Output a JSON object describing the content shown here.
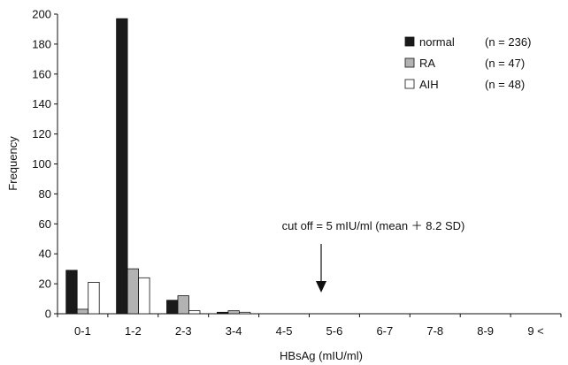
{
  "chart_data": {
    "type": "bar",
    "xlabel": "HBsAg (mIU/ml)",
    "ylabel": "Frequency",
    "ylim": [
      0,
      200
    ],
    "yticks": [
      0,
      20,
      40,
      60,
      80,
      100,
      120,
      140,
      160,
      180,
      200
    ],
    "categories": [
      "0-1",
      "1-2",
      "2-3",
      "3-4",
      "4-5",
      "5-6",
      "6-7",
      "7-8",
      "8-9",
      "9 <"
    ],
    "series": [
      {
        "name": "normal",
        "n_label": "(n = 236)",
        "color": "#1a1a1a",
        "values": [
          29,
          197,
          9,
          1,
          0,
          0,
          0,
          0,
          0,
          0
        ]
      },
      {
        "name": "RA",
        "n_label": "(n = 47)",
        "color": "#b3b3b3",
        "values": [
          3,
          30,
          12,
          2,
          0,
          0,
          0,
          0,
          0,
          0
        ]
      },
      {
        "name": "AIH",
        "n_label": "(n = 48)",
        "color": "#ffffff",
        "values": [
          21,
          24,
          2,
          1,
          0,
          0,
          0,
          0,
          0,
          0
        ]
      }
    ],
    "legend_position": "top-right",
    "grid": false,
    "annotation": {
      "text": "cut off = 5 mIU/ml (mean ＋ 8.2 SD)",
      "x_value": 5,
      "arrow": "down"
    }
  }
}
